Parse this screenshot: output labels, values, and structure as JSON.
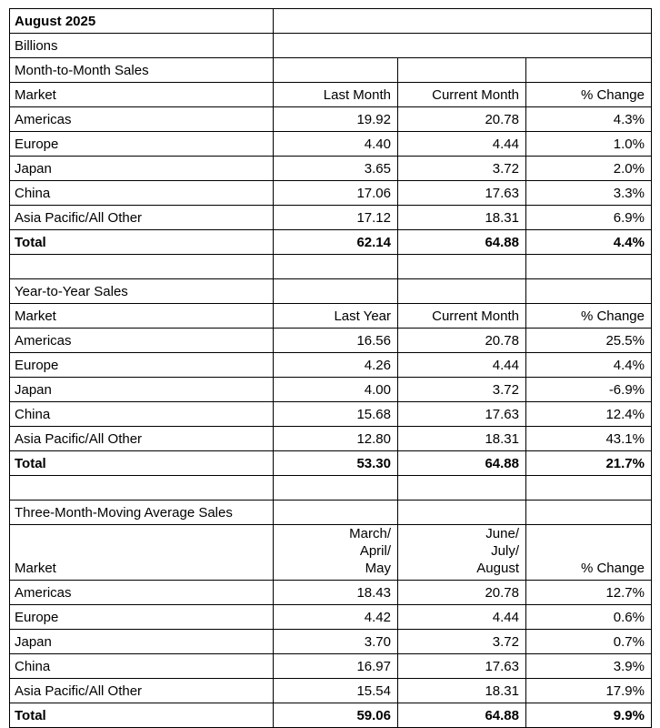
{
  "report": {
    "title": "August 2025",
    "units_label": "Billions",
    "sections": [
      {
        "heading": "Month-to-Month Sales",
        "columns": [
          "Market",
          "Last Month",
          "Current Month",
          "% Change"
        ],
        "rows": [
          [
            "Americas",
            "19.92",
            "20.78",
            "4.3%"
          ],
          [
            "Europe",
            "4.40",
            "4.44",
            "1.0%"
          ],
          [
            "Japan",
            "3.65",
            "3.72",
            "2.0%"
          ],
          [
            "China",
            "17.06",
            "17.63",
            "3.3%"
          ],
          [
            "Asia Pacific/All Other",
            "17.12",
            "18.31",
            "6.9%"
          ]
        ],
        "total": [
          "Total",
          "62.14",
          "64.88",
          "4.4%"
        ]
      },
      {
        "heading": "Year-to-Year Sales",
        "columns": [
          "Market",
          "Last Year",
          "Current Month",
          "% Change"
        ],
        "rows": [
          [
            "Americas",
            "16.56",
            "20.78",
            "25.5%"
          ],
          [
            "Europe",
            "4.26",
            "4.44",
            "4.4%"
          ],
          [
            "Japan",
            "4.00",
            "3.72",
            "-6.9%"
          ],
          [
            "China",
            "15.68",
            "17.63",
            "12.4%"
          ],
          [
            "Asia Pacific/All Other",
            "12.80",
            "18.31",
            "43.1%"
          ]
        ],
        "total": [
          "Total",
          "53.30",
          "64.88",
          "21.7%"
        ]
      },
      {
        "heading": "Three-Month-Moving Average Sales",
        "columns": [
          "Market",
          "March/\nApril/\nMay",
          "June/\nJuly/\nAugust",
          "% Change"
        ],
        "rows": [
          [
            "Americas",
            "18.43",
            "20.78",
            "12.7%"
          ],
          [
            "Europe",
            "4.42",
            "4.44",
            "0.6%"
          ],
          [
            "Japan",
            "3.70",
            "3.72",
            "0.7%"
          ],
          [
            "China",
            "16.97",
            "17.63",
            "3.9%"
          ],
          [
            "Asia Pacific/All Other",
            "15.54",
            "18.31",
            "17.9%"
          ]
        ],
        "total": [
          "Total",
          "59.06",
          "64.88",
          "9.9%"
        ]
      }
    ],
    "colors": {
      "border": "#000000",
      "text": "#000000",
      "background": "#ffffff"
    }
  }
}
